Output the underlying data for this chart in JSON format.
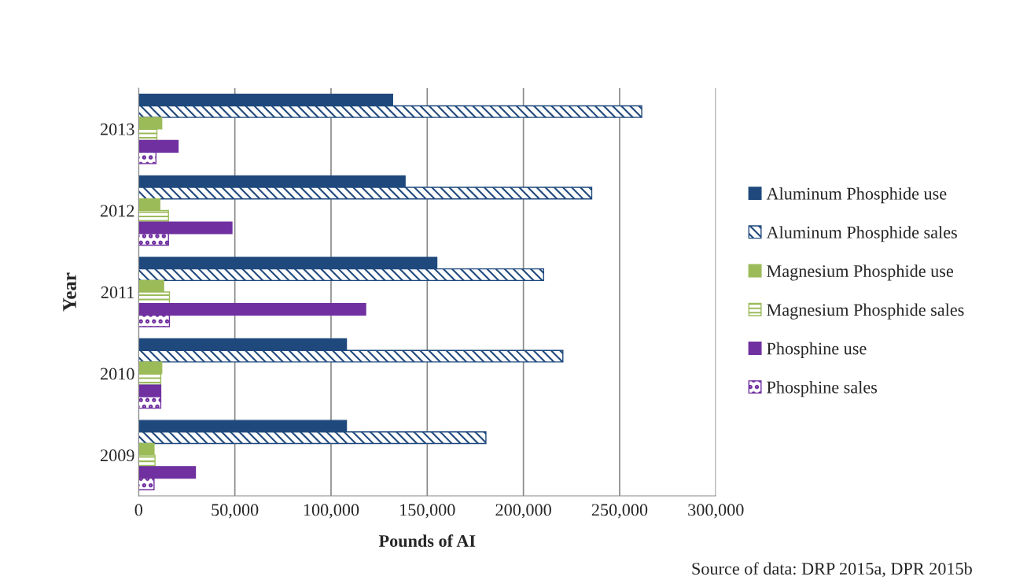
{
  "chart_data": {
    "type": "bar",
    "orientation": "horizontal",
    "ylabel": "Year",
    "xlabel": "Pounds of AI",
    "categories": [
      "2013",
      "2012",
      "2011",
      "2010",
      "2009"
    ],
    "series": [
      {
        "name": "Aluminum Phosphide use",
        "color": "#1f497d",
        "values": [
          132000,
          138500,
          155000,
          108000,
          108000
        ]
      },
      {
        "name": "Aluminum Phosphide sales",
        "color": "#1f497d",
        "values": [
          261500,
          235500,
          210500,
          220500,
          180500
        ]
      },
      {
        "name": "Magnesium Phosphide use",
        "color": "#9bbb59",
        "values": [
          12000,
          11000,
          13000,
          12000,
          8000
        ]
      },
      {
        "name": "Magnesium Phosphide sales",
        "color": "#9bbb59",
        "values": [
          9500,
          15500,
          16000,
          11500,
          8500
        ]
      },
      {
        "name": "Phosphine use",
        "color": "#7030a0",
        "values": [
          20500,
          48500,
          118000,
          11500,
          29500
        ]
      },
      {
        "name": "Phosphine sales",
        "color": "#7030a0",
        "values": [
          9000,
          15500,
          16000,
          11500,
          8000
        ]
      }
    ],
    "xlim": [
      0,
      300000
    ],
    "xticks": [
      {
        "value": 0,
        "label": "0"
      },
      {
        "value": 50000,
        "label": "50,000"
      },
      {
        "value": 100000,
        "label": "100,000"
      },
      {
        "value": 150000,
        "label": "150,000"
      },
      {
        "value": 200000,
        "label": "200,000"
      },
      {
        "value": 250000,
        "label": "250,000"
      },
      {
        "value": 300000,
        "label": "300,000"
      }
    ],
    "grid": "x",
    "legend": "right",
    "annotations": [
      "Source of data: DRP 2015a, DPR 2015b"
    ]
  }
}
